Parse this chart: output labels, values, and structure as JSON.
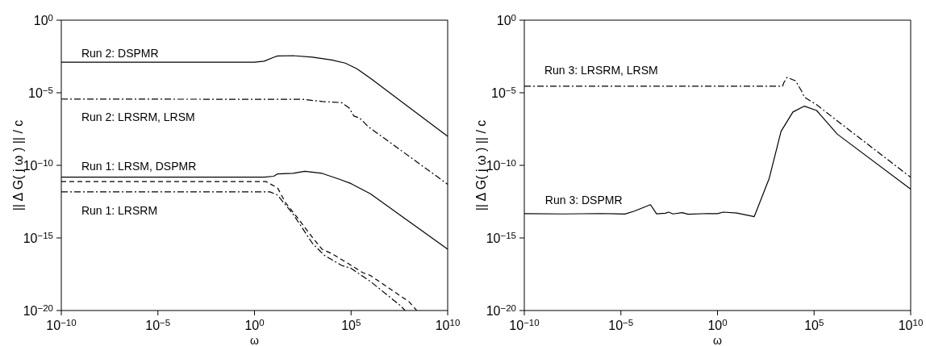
{
  "chart_data": [
    {
      "type": "line",
      "xlabel": "ω",
      "ylabel": "|| Δ G( j ω ) || / c",
      "log": "xy",
      "xlim": [
        1e-10,
        10000000000.0
      ],
      "ylim": [
        1e-20,
        1
      ],
      "xticks": [
        {
          "value": 1e-10,
          "label": "10$^{−10}$"
        },
        {
          "value": 1e-05,
          "label": "10$^{−5}$"
        },
        {
          "value": 1,
          "label": "10$^{0}$"
        },
        {
          "value": 100000.0,
          "label": "10$^{5}$"
        },
        {
          "value": 10000000000.0,
          "label": "10$^{10}$"
        }
      ],
      "yticks": [
        {
          "value": 1e-20,
          "label": "10$^{−20}$"
        },
        {
          "value": 1e-15,
          "label": "10$^{−15}$"
        },
        {
          "value": 1e-10,
          "label": "10$^{−10}$"
        },
        {
          "value": 1e-05,
          "label": "10$^{−5}$"
        },
        {
          "value": 1,
          "label": "10$^{0}$"
        }
      ],
      "series": [
        {
          "color": "#000000",
          "line_style": "solid",
          "x": [
            1e-10,
            1,
            3.16,
            10,
            15.8,
            100,
            1000,
            10000.0,
            50000.0,
            200000.0,
            1000000.0,
            10000000000.0
          ],
          "values": [
            0.00126,
            0.00126,
            0.0015,
            0.0028,
            0.0034,
            0.0036,
            0.0028,
            0.0018,
            0.0011,
            0.00045,
            0.0001,
            1e-08
          ]
        },
        {
          "color": "#000000",
          "line_style": "dashdot",
          "x": [
            1e-10,
            316,
            3160,
            31600.0,
            79000.0,
            140000.0,
            280000.0,
            790000.0,
            10000000000.0
          ],
          "values": [
            3.7e-06,
            3.5e-06,
            2.5e-06,
            2.1e-06,
            9e-07,
            2.5e-07,
            1.8e-07,
            4.5e-08,
            5e-12
          ]
        },
        {
          "color": "#000000",
          "line_style": "solid",
          "x": [
            1e-10,
            3.16,
            10,
            15.8,
            100,
            400,
            3160,
            25000.0,
            100000.0,
            1000000.0,
            10000000000.0
          ],
          "values": [
            1.55e-11,
            1.55e-11,
            1.78e-11,
            2.6e-11,
            2.8e-11,
            3.9e-11,
            2.8e-11,
            1.1e-11,
            5.5e-12,
            1.1e-12,
            1.66e-16
          ]
        },
        {
          "color": "#000000",
          "line_style": "dashed",
          "x": [
            1e-10,
            3.98,
            15.8,
            40,
            158,
            1000,
            3160,
            10000.0,
            100000.0,
            400000.0,
            1000000.0,
            100000000.0,
            250000000.0
          ],
          "values": [
            7.6e-12,
            7.6e-12,
            2.75e-12,
            2.75e-13,
            2.7e-14,
            1.07e-15,
            1.66e-16,
            8.3e-17,
            1.3e-17,
            4.1e-18,
            2.6e-18,
            4e-20,
            1e-20
          ]
        },
        {
          "color": "#000000",
          "line_style": "dashdot",
          "x": [
            1e-10,
            6.3,
            15.8,
            100,
            316,
            1000,
            4000,
            31600.0,
            100000.0,
            1000000.0,
            31600000.0,
            63000000.0
          ],
          "values": [
            1.5e-12,
            1.5e-12,
            8.7e-13,
            4.3e-14,
            4.3e-15,
            4.2e-16,
            6.6e-17,
            1.3e-17,
            8.1e-18,
            1e-18,
            2.5e-20,
            1e-20
          ]
        }
      ],
      "annotations": [
        "Run 2: DSPMR",
        "Run 2: LRSRM, LRSM",
        "Run 1: LRSM, DSPMR",
        "Run 1: LRSRM"
      ]
    },
    {
      "type": "line",
      "xlabel": "ω",
      "ylabel": "|| Δ G( j ω ) || / c",
      "log": "xy",
      "xlim": [
        1e-10,
        10000000000.0
      ],
      "ylim": [
        1e-20,
        1
      ],
      "xticks": [
        {
          "value": 1e-10,
          "label": "10$^{−10}$"
        },
        {
          "value": 1e-05,
          "label": "10$^{−5}$"
        },
        {
          "value": 1,
          "label": "10$^{0}$"
        },
        {
          "value": 100000.0,
          "label": "10$^{5}$"
        },
        {
          "value": 10000000000.0,
          "label": "10$^{10}$"
        }
      ],
      "yticks": [
        {
          "value": 1e-20,
          "label": "10$^{−20}$"
        },
        {
          "value": 1e-15,
          "label": "10$^{−15}$"
        },
        {
          "value": 1e-10,
          "label": "10$^{−10}$"
        },
        {
          "value": 1e-05,
          "label": "10$^{−5}$"
        },
        {
          "value": 1,
          "label": "10$^{0}$"
        }
      ],
      "series": [
        {
          "color": "#000000",
          "line_style": "dashdot",
          "x": [
            1e-10,
            955,
            2300,
            2750,
            4000,
            11000.0,
            23000.0,
            31600.0,
            135000.0,
            1600000.0,
            10000000000.0
          ],
          "values": [
            2.8e-05,
            2.8e-05,
            2.8e-05,
            5.1e-05,
            0.000115,
            6.6e-05,
            1.26e-05,
            4.9e-06,
            1.5e-06,
            1.15e-07,
            1.5e-11
          ]
        },
        {
          "color": "#000000",
          "line_style": "solid",
          "x": [
            1e-10,
            1e-08,
            1e-06,
            1.6e-05,
            5e-05,
            0.00034,
            0.0007,
            0.002,
            0.003,
            0.005,
            0.015,
            0.03,
            0.3,
            1,
            2,
            10,
            80,
            470,
            1950,
            8000,
            31600.0,
            135000.0,
            1600000.0,
            10000000000.0
          ],
          "values": [
            4.7e-14,
            4.5e-14,
            4.8e-14,
            4.4e-14,
            7e-14,
            1.95e-13,
            4.6e-14,
            5e-14,
            6e-14,
            4.5e-14,
            5.5e-14,
            4.3e-14,
            4.8e-14,
            4.7e-14,
            6e-14,
            5.2e-14,
            2.95e-14,
            1.2e-11,
            2.2e-08,
            4.7e-07,
            1.2e-06,
            6e-07,
            1.4e-08,
            2.3e-12
          ]
        }
      ],
      "annotations": [
        "Run 3: LRSRM, LRSM",
        "Run 3: DSPMR"
      ]
    }
  ]
}
